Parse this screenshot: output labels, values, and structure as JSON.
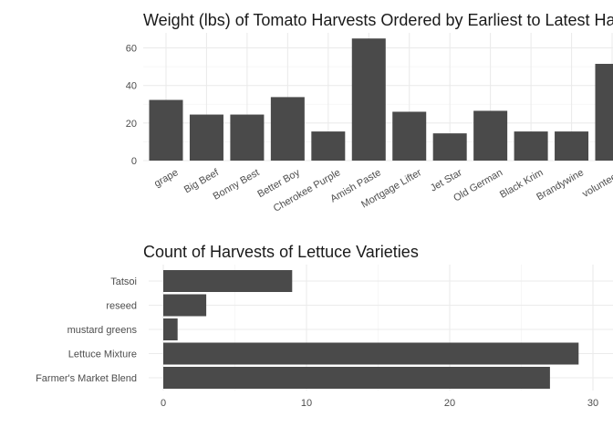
{
  "chart_data": [
    {
      "type": "bar",
      "title": "Weight (lbs) of Tomato Harvests Ordered by Earliest to Latest Harvest",
      "xlabel": "",
      "ylabel": "",
      "categories": [
        "grape",
        "Big Beef",
        "Bonny Best",
        "Better Boy",
        "Cherokee Purple",
        "Amish Paste",
        "Mortgage Lifter",
        "Jet Star",
        "Old German",
        "Black Krim",
        "Brandywine",
        "volunteers"
      ],
      "values": [
        32.3,
        24.5,
        24.5,
        33.8,
        15.5,
        65.0,
        26.0,
        14.5,
        26.5,
        15.5,
        15.5,
        51.5
      ],
      "ylim": [
        0,
        68
      ],
      "yticks": [
        0,
        20,
        40,
        60
      ],
      "grid": true,
      "bar_color": "#4a4a4a"
    },
    {
      "type": "bar",
      "orientation": "horizontal",
      "title": "Count of Harvests of Lettuce Varieties",
      "xlabel": "",
      "ylabel": "",
      "categories": [
        "Tatsoi",
        "reseed",
        "mustard greens",
        "Lettuce Mixture",
        "Farmer's Market Blend"
      ],
      "values": [
        9,
        3,
        1,
        29,
        27
      ],
      "xlim": [
        0,
        30
      ],
      "xticks": [
        0,
        10,
        20,
        30
      ],
      "grid": true,
      "bar_color": "#4a4a4a"
    }
  ]
}
